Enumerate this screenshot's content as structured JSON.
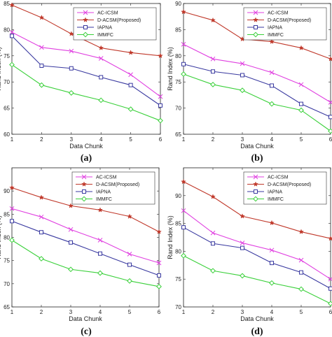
{
  "chart_data": [
    {
      "type": "line",
      "panel_label": "(a)",
      "xlabel": "Data Chunk",
      "ylabel": "Rand Index (%)",
      "x": [
        1,
        2,
        3,
        4,
        5,
        6
      ],
      "xlim": [
        1,
        6
      ],
      "ylim": [
        60,
        85
      ],
      "yticks": [
        60,
        65,
        70,
        75,
        80,
        85
      ],
      "grid": false,
      "legend_position": "top-right",
      "series": [
        {
          "name": "AC-ICSM",
          "color": "#e040e0",
          "marker": "x",
          "values": [
            79.5,
            76.6,
            75.9,
            74.5,
            71.4,
            67.2
          ]
        },
        {
          "name": "D-ACSM(Proposed)",
          "color": "#c0392b",
          "marker": "star",
          "values": [
            84.7,
            82.3,
            79.2,
            76.5,
            75.6,
            75.0
          ]
        },
        {
          "name": "IAPNA",
          "color": "#3a3aa0",
          "marker": "square",
          "values": [
            78.8,
            73.1,
            72.6,
            70.9,
            69.4,
            65.5
          ]
        },
        {
          "name": "IMMFC",
          "color": "#3ad03a",
          "marker": "diamond",
          "values": [
            73.3,
            69.4,
            67.9,
            66.5,
            64.8,
            62.6
          ]
        }
      ]
    },
    {
      "type": "line",
      "panel_label": "(b)",
      "xlabel": "Data Chunk",
      "ylabel": "Rand Index (%)",
      "x": [
        1,
        2,
        3,
        4,
        5,
        6
      ],
      "xlim": [
        1,
        6
      ],
      "ylim": [
        65,
        90
      ],
      "yticks": [
        65,
        70,
        75,
        80,
        85,
        90
      ],
      "grid": false,
      "legend_position": "top-right",
      "series": [
        {
          "name": "AC-ICSM",
          "color": "#e040e0",
          "marker": "x",
          "values": [
            82.2,
            79.4,
            78.5,
            76.8,
            74.5,
            71.1
          ]
        },
        {
          "name": "D-ACSM(Proposed)",
          "color": "#c0392b",
          "marker": "star",
          "values": [
            88.4,
            86.8,
            83.2,
            82.7,
            81.5,
            79.4
          ]
        },
        {
          "name": "IAPNA",
          "color": "#3a3aa0",
          "marker": "square",
          "values": [
            78.4,
            77.0,
            76.3,
            74.3,
            70.8,
            68.3
          ]
        },
        {
          "name": "IMMFC",
          "color": "#3ad03a",
          "marker": "diamond",
          "values": [
            76.5,
            74.5,
            73.4,
            70.8,
            69.6,
            65.6
          ]
        }
      ]
    },
    {
      "type": "line",
      "panel_label": "(c)",
      "xlabel": "Data Chunk",
      "ylabel": "Rand Index (%)",
      "x": [
        1,
        2,
        3,
        4,
        5,
        6
      ],
      "xlim": [
        1,
        6
      ],
      "ylim": [
        65,
        95
      ],
      "yticks": [
        65,
        70,
        75,
        80,
        85,
        90
      ],
      "grid": false,
      "legend_position": "top-right",
      "series": [
        {
          "name": "AC-ICSM",
          "color": "#e040e0",
          "marker": "x",
          "values": [
            86.2,
            84.4,
            81.7,
            79.4,
            76.4,
            74.5
          ]
        },
        {
          "name": "D-ACSM(Proposed)",
          "color": "#c0392b",
          "marker": "star",
          "values": [
            90.7,
            88.6,
            86.8,
            85.9,
            84.5,
            81.2
          ]
        },
        {
          "name": "IAPNA",
          "color": "#3a3aa0",
          "marker": "square",
          "values": [
            83.5,
            81.1,
            78.9,
            76.5,
            74.1,
            71.8
          ]
        },
        {
          "name": "IMMFC",
          "color": "#3ad03a",
          "marker": "diamond",
          "values": [
            79.4,
            75.4,
            73.1,
            72.3,
            70.6,
            69.4
          ]
        }
      ]
    },
    {
      "type": "line",
      "panel_label": "(d)",
      "xlabel": "Data Chunk",
      "ylabel": "Rand Index (%)",
      "x": [
        1,
        2,
        3,
        4,
        5,
        6
      ],
      "xlim": [
        1,
        6
      ],
      "ylim": [
        70,
        95
      ],
      "yticks": [
        70,
        75,
        80,
        85,
        90
      ],
      "grid": false,
      "legend_position": "top-right",
      "series": [
        {
          "name": "AC-ICSM",
          "color": "#e040e0",
          "marker": "x",
          "values": [
            87.3,
            83.3,
            81.5,
            80.2,
            78.4,
            75.0
          ]
        },
        {
          "name": "D-ACSM(Proposed)",
          "color": "#c0392b",
          "marker": "star",
          "values": [
            92.5,
            89.8,
            86.3,
            85.1,
            83.5,
            82.3
          ]
        },
        {
          "name": "IAPNA",
          "color": "#3a3aa0",
          "marker": "square",
          "values": [
            84.3,
            81.4,
            80.6,
            77.9,
            76.2,
            73.3
          ]
        },
        {
          "name": "IMMFC",
          "color": "#3ad03a",
          "marker": "diamond",
          "values": [
            79.2,
            76.5,
            75.6,
            74.3,
            73.2,
            70.6
          ]
        }
      ]
    }
  ]
}
